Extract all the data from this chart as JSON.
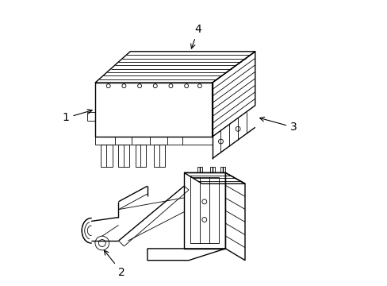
{
  "background_color": "#ffffff",
  "line_color": "#000000",
  "lw": 1.0,
  "tlw": 0.6,
  "fig_width": 4.89,
  "fig_height": 3.6,
  "dpi": 100,
  "label_fontsize": 10
}
